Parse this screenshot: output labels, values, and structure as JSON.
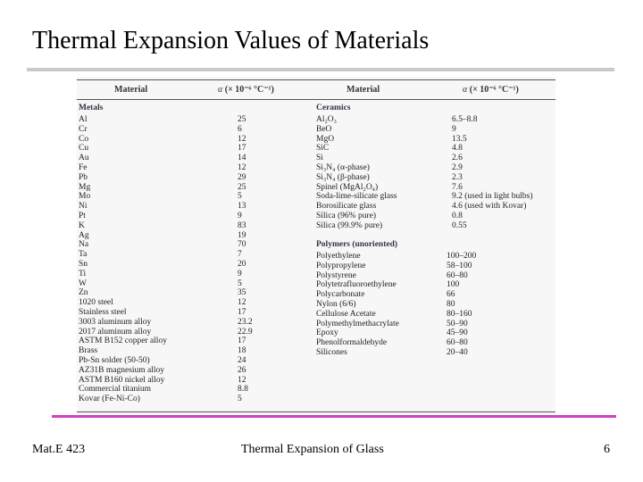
{
  "slide": {
    "title": "Thermal Expansion Values of Materials",
    "footer_left": "Mat.E 423",
    "footer_center": "Thermal Expansion of Glass",
    "footer_right": "6"
  },
  "table": {
    "headers": {
      "material": "Material",
      "alpha_symbol": "α",
      "alpha_rest": "(× 10⁻⁶ °C⁻¹)",
      "material_right": "Material",
      "alpha_rest_right": "(× 10⁻⁶ °C⁻¹)"
    },
    "metals_title": "Metals",
    "metals": [
      {
        "name": "Al",
        "value": "25"
      },
      {
        "name": "Cr",
        "value": "6"
      },
      {
        "name": "Co",
        "value": "12"
      },
      {
        "name": "Cu",
        "value": "17"
      },
      {
        "name": "Au",
        "value": "14"
      },
      {
        "name": "Fe",
        "value": "12"
      },
      {
        "name": "Pb",
        "value": "29"
      },
      {
        "name": "Mg",
        "value": "25"
      },
      {
        "name": "Mo",
        "value": "5"
      },
      {
        "name": "Ni",
        "value": "13"
      },
      {
        "name": "Pt",
        "value": "9"
      },
      {
        "name": "K",
        "value": "83"
      },
      {
        "name": "Ag",
        "value": "19"
      },
      {
        "name": "Na",
        "value": "70"
      },
      {
        "name": "Ta",
        "value": "7"
      },
      {
        "name": "Sn",
        "value": "20"
      },
      {
        "name": "Ti",
        "value": "9"
      },
      {
        "name": "W",
        "value": "5"
      },
      {
        "name": "Zn",
        "value": "35"
      },
      {
        "name": "1020 steel",
        "value": "12"
      },
      {
        "name": "Stainless steel",
        "value": "17"
      },
      {
        "name": "3003 aluminum alloy",
        "value": "23.2"
      },
      {
        "name": "2017 aluminum alloy",
        "value": "22.9"
      },
      {
        "name": "ASTM B152 copper alloy",
        "value": "17"
      },
      {
        "name": "Brass",
        "value": "18"
      },
      {
        "name": "Pb-Sn solder (50-50)",
        "value": "24"
      },
      {
        "name": "AZ31B magnesium alloy",
        "value": "26"
      },
      {
        "name": "ASTM B160 nickel alloy",
        "value": "12"
      },
      {
        "name": "Commercial titanium",
        "value": "8.8"
      },
      {
        "name": "Kovar (Fe-Ni-Co)",
        "value": "5"
      }
    ],
    "ceramics_title": "Ceramics",
    "ceramics": [
      {
        "name": "Al₂O₃",
        "value": "6.5–8.8"
      },
      {
        "name": "BeO",
        "value": "9"
      },
      {
        "name": "MgO",
        "value": "13.5"
      },
      {
        "name": "SiC",
        "value": "4.8"
      },
      {
        "name": "Si",
        "value": "2.6"
      },
      {
        "name": "Si₃N₄ (α-phase)",
        "value": "2.9"
      },
      {
        "name": "Si₃N₄ (β-phase)",
        "value": "2.3"
      },
      {
        "name": "Spinel (MgAl₂O₄)",
        "value": "7.6"
      },
      {
        "name": "Soda-lime-silicate glass",
        "value": "9.2 (used in light bulbs)"
      },
      {
        "name": "Borosilicate glass",
        "value": "4.6 (used with Kovar)"
      },
      {
        "name": "Silica (96% pure)",
        "value": "0.8"
      },
      {
        "name": "Silica (99.9% pure)",
        "value": "0.55"
      }
    ],
    "polymers_title": "Polymers (unoriented)",
    "polymers": [
      {
        "name": "Polyethylene",
        "value": "100–200"
      },
      {
        "name": "Polypropylene",
        "value": "58–100"
      },
      {
        "name": "Polystyrene",
        "value": "60–80"
      },
      {
        "name": "Polytetrafluoroethylene",
        "value": "100"
      },
      {
        "name": "Polycarbonate",
        "value": "66"
      },
      {
        "name": "Nylon (6/6)",
        "value": "80"
      },
      {
        "name": "Cellulose Acetate",
        "value": "80–160"
      },
      {
        "name": "Polymethylmethacrylate",
        "value": "50–90"
      },
      {
        "name": "Epoxy",
        "value": "45–90"
      },
      {
        "name": "Phenolformaldehyde",
        "value": "60–80"
      },
      {
        "name": "Silicones",
        "value": "20–40"
      }
    ]
  }
}
